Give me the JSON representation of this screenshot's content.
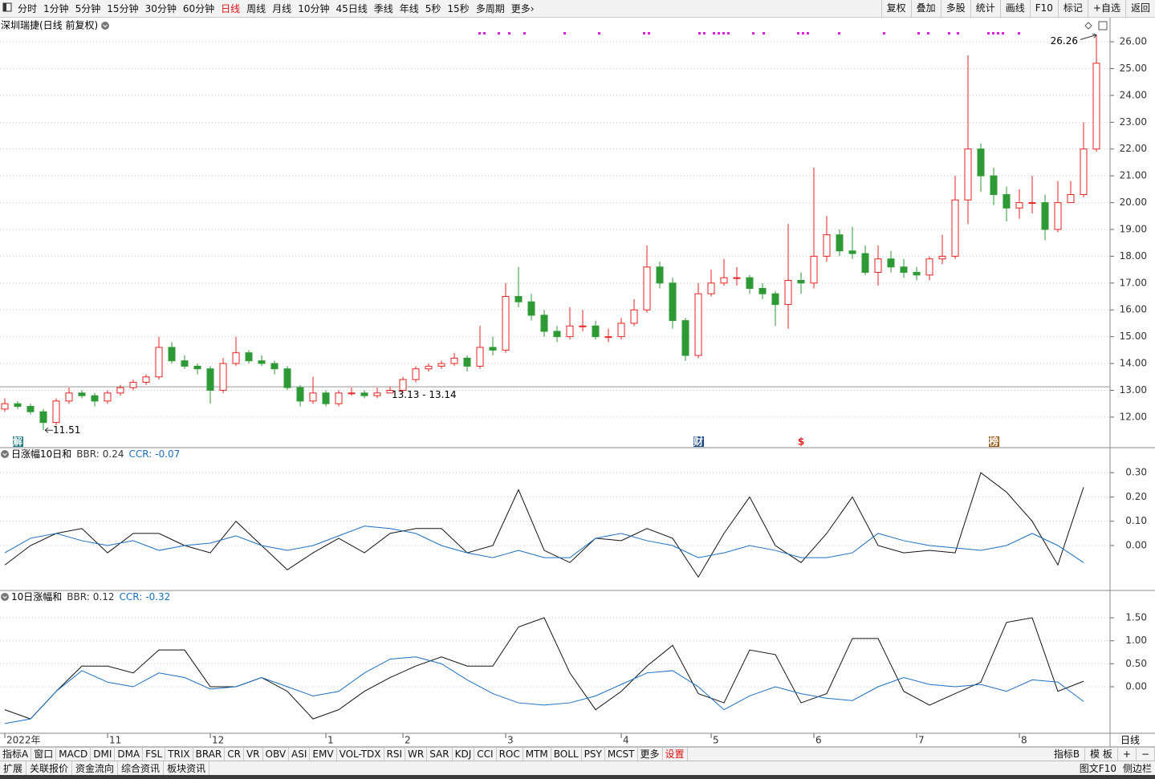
{
  "toolbar": {
    "periods": [
      "分时",
      "1分钟",
      "5分钟",
      "15分钟",
      "30分钟",
      "60分钟",
      "日线",
      "周线",
      "月线",
      "10分钟",
      "45日线",
      "季线",
      "年线",
      "5秒",
      "15秒",
      "多周期",
      "更多"
    ],
    "active": 6,
    "right": [
      "复权",
      "叠加",
      "多股",
      "统计",
      "画线",
      "F10",
      "标记",
      "+自选",
      "返回"
    ]
  },
  "chart_data": [
    {
      "type": "candlestick",
      "title": "深圳瑞捷(日线 前复权)",
      "up_color": "#e8231f",
      "down_color": "#2e9a35",
      "ohlc": [
        [
          12.3,
          12.7,
          12.2,
          12.5
        ],
        [
          12.5,
          12.6,
          12.3,
          12.4
        ],
        [
          12.4,
          12.5,
          12.1,
          12.2
        ],
        [
          12.2,
          12.3,
          11.51,
          11.8
        ],
        [
          11.8,
          12.7,
          11.7,
          12.6
        ],
        [
          12.6,
          13.1,
          12.5,
          12.9
        ],
        [
          12.9,
          13.0,
          12.7,
          12.8
        ],
        [
          12.8,
          12.9,
          12.4,
          12.6
        ],
        [
          12.6,
          13.0,
          12.5,
          12.9
        ],
        [
          12.9,
          13.2,
          12.8,
          13.1
        ],
        [
          13.1,
          13.4,
          13.0,
          13.3
        ],
        [
          13.3,
          13.6,
          13.2,
          13.5
        ],
        [
          13.5,
          15.0,
          13.4,
          14.6
        ],
        [
          14.6,
          14.8,
          14.0,
          14.1
        ],
        [
          14.1,
          14.3,
          13.8,
          13.9
        ],
        [
          13.9,
          14.0,
          13.6,
          13.8
        ],
        [
          13.8,
          13.9,
          12.5,
          13.0
        ],
        [
          13.0,
          14.2,
          12.9,
          14.0
        ],
        [
          14.0,
          15.0,
          13.9,
          14.4
        ],
        [
          14.4,
          14.5,
          14.0,
          14.1
        ],
        [
          14.1,
          14.3,
          13.9,
          14.0
        ],
        [
          14.0,
          14.1,
          13.6,
          13.8
        ],
        [
          13.8,
          13.9,
          13.0,
          13.1
        ],
        [
          13.1,
          13.2,
          12.4,
          12.6
        ],
        [
          12.6,
          13.5,
          12.5,
          12.9
        ],
        [
          12.9,
          13.0,
          12.4,
          12.5
        ],
        [
          12.5,
          13.0,
          12.4,
          12.9
        ],
        [
          12.9,
          13.1,
          12.8,
          12.9
        ],
        [
          12.9,
          13.0,
          12.7,
          12.8
        ],
        [
          12.8,
          13.1,
          12.7,
          12.9
        ],
        [
          12.9,
          13.14,
          12.9,
          13.0
        ],
        [
          13.0,
          13.5,
          12.9,
          13.4
        ],
        [
          13.4,
          13.9,
          13.3,
          13.8
        ],
        [
          13.8,
          14.0,
          13.7,
          13.9
        ],
        [
          13.9,
          14.1,
          13.8,
          14.0
        ],
        [
          14.0,
          14.4,
          13.9,
          14.2
        ],
        [
          14.2,
          14.3,
          13.7,
          13.9
        ],
        [
          13.9,
          15.4,
          13.8,
          14.6
        ],
        [
          14.6,
          15.0,
          14.3,
          14.5
        ],
        [
          14.5,
          17.0,
          14.4,
          16.5
        ],
        [
          16.5,
          17.6,
          16.1,
          16.3
        ],
        [
          16.3,
          16.6,
          15.6,
          15.8
        ],
        [
          15.8,
          16.0,
          15.0,
          15.2
        ],
        [
          15.2,
          15.4,
          14.8,
          15.0
        ],
        [
          15.0,
          16.1,
          14.9,
          15.4
        ],
        [
          15.4,
          16.0,
          15.2,
          15.4
        ],
        [
          15.4,
          15.6,
          14.9,
          15.0
        ],
        [
          15.0,
          15.3,
          14.8,
          15.0
        ],
        [
          15.0,
          15.7,
          14.9,
          15.5
        ],
        [
          15.5,
          16.4,
          15.4,
          16.0
        ],
        [
          16.0,
          18.4,
          15.9,
          17.6
        ],
        [
          17.6,
          17.8,
          16.8,
          17.0
        ],
        [
          17.0,
          17.2,
          15.3,
          15.6
        ],
        [
          15.6,
          15.7,
          14.1,
          14.3
        ],
        [
          14.3,
          17.0,
          14.2,
          16.6
        ],
        [
          16.6,
          17.5,
          16.5,
          17.0
        ],
        [
          17.0,
          17.9,
          16.9,
          17.2
        ],
        [
          17.2,
          17.6,
          16.9,
          17.2
        ],
        [
          17.2,
          17.3,
          16.6,
          16.8
        ],
        [
          16.8,
          17.0,
          16.4,
          16.6
        ],
        [
          16.6,
          16.7,
          15.4,
          16.2
        ],
        [
          16.2,
          19.2,
          15.3,
          17.1
        ],
        [
          17.1,
          17.4,
          16.6,
          17.0
        ],
        [
          17.0,
          21.3,
          16.8,
          18.0
        ],
        [
          18.0,
          19.5,
          17.8,
          18.8
        ],
        [
          18.8,
          19.0,
          18.0,
          18.2
        ],
        [
          18.2,
          19.1,
          17.9,
          18.1
        ],
        [
          18.1,
          18.4,
          17.3,
          17.4
        ],
        [
          17.4,
          18.4,
          16.9,
          17.9
        ],
        [
          17.9,
          18.2,
          17.4,
          17.6
        ],
        [
          17.6,
          17.9,
          17.2,
          17.4
        ],
        [
          17.4,
          17.6,
          17.1,
          17.3
        ],
        [
          17.3,
          18.0,
          17.1,
          17.9
        ],
        [
          17.9,
          18.8,
          17.7,
          18.0
        ],
        [
          18.0,
          21.0,
          17.9,
          20.1
        ],
        [
          20.1,
          25.5,
          19.2,
          22.0
        ],
        [
          22.0,
          22.2,
          20.4,
          21.0
        ],
        [
          21.0,
          21.3,
          19.9,
          20.3
        ],
        [
          20.3,
          20.6,
          19.3,
          19.8
        ],
        [
          19.8,
          20.5,
          19.4,
          20.0
        ],
        [
          20.0,
          21.0,
          19.6,
          20.0
        ],
        [
          20.0,
          20.3,
          18.6,
          19.0
        ],
        [
          19.0,
          20.8,
          18.9,
          20.0
        ],
        [
          20.0,
          20.8,
          20.0,
          20.3
        ],
        [
          20.3,
          23.0,
          20.2,
          22.0
        ],
        [
          22.0,
          26.26,
          21.9,
          25.2
        ]
      ],
      "ylim": [
        10.86,
        26.9
      ],
      "yticks": [
        {
          "value": 26,
          "label": "26.00"
        },
        {
          "value": 25,
          "label": "25.00"
        },
        {
          "value": 24,
          "label": "24.00"
        },
        {
          "value": 23,
          "label": "23.00"
        },
        {
          "value": 22,
          "label": "22.00"
        },
        {
          "value": 21,
          "label": "21.00"
        },
        {
          "value": 20,
          "label": "20.00"
        },
        {
          "value": 19,
          "label": "19.00"
        },
        {
          "value": 18,
          "label": "18.00"
        },
        {
          "value": 17,
          "label": "17.00"
        },
        {
          "value": 16,
          "label": "16.00"
        },
        {
          "value": 15,
          "label": "15.00"
        },
        {
          "value": 14,
          "label": "14.00"
        },
        {
          "value": 13,
          "label": "13.00"
        },
        {
          "value": 12,
          "label": "12.00"
        }
      ],
      "grid": true,
      "marker_line": [
        13.13,
        13.14
      ],
      "events": [
        {
          "at": 1,
          "label": "解",
          "color": "#1f7f86"
        },
        {
          "at": 54,
          "label": "财",
          "color": "#234f86"
        },
        {
          "at": 62,
          "label": "$",
          "color": "#e02020"
        },
        {
          "at": 77,
          "label": "榜",
          "color": "#9a5a12"
        }
      ]
    },
    {
      "type": "line",
      "title": "日涨幅10日和",
      "series": [
        {
          "name": "BBR:",
          "color": "#111111",
          "values": [
            -0.08,
            0,
            0.05,
            0.07,
            -0.03,
            0.05,
            0.05,
            0,
            -0.03,
            0.1,
            0,
            -0.1,
            -0.03,
            0.03,
            -0.03,
            0.05,
            0.07,
            0.07,
            -0.03,
            0,
            0.23,
            -0.02,
            -0.07,
            0.03,
            0.02,
            0.07,
            0.03,
            -0.13,
            0.05,
            0.2,
            0,
            -0.07,
            0.05,
            0.2,
            0,
            -0.03,
            -0.02,
            -0.03,
            0.3,
            0.22,
            0.1,
            -0.08,
            0.24
          ]
        },
        {
          "name": "CCR:",
          "color": "#1a6fc4",
          "values": [
            -0.03,
            0.03,
            0.05,
            0.02,
            0,
            0.02,
            -0.02,
            0,
            0.01,
            0.04,
            0,
            -0.02,
            0,
            0.04,
            0.08,
            0.07,
            0.05,
            0,
            -0.03,
            -0.05,
            -0.02,
            -0.05,
            -0.05,
            0.03,
            0.05,
            0.02,
            0,
            -0.05,
            -0.03,
            0,
            -0.02,
            -0.05,
            -0.05,
            -0.03,
            0.05,
            0.02,
            0,
            -0.01,
            -0.02,
            0,
            0.05,
            0,
            -0.07
          ]
        }
      ],
      "ylim": [
        -0.185,
        0.403
      ],
      "yticks": [
        {
          "value": 0.3,
          "label": "0.30"
        },
        {
          "value": 0.2,
          "label": "0.20"
        },
        {
          "value": 0.1,
          "label": "0.10"
        },
        {
          "value": 0,
          "label": "0.00"
        }
      ],
      "grid": true
    },
    {
      "type": "line",
      "title": "10日涨幅和",
      "series": [
        {
          "name": "BBR:",
          "color": "#111111",
          "values": [
            -0.5,
            -0.7,
            -0.1,
            0.45,
            0.45,
            0.3,
            0.8,
            0.8,
            0,
            0,
            0.2,
            -0.1,
            -0.7,
            -0.5,
            -0.1,
            0.2,
            0.45,
            0.65,
            0.45,
            0.45,
            1.3,
            1.5,
            0.3,
            -0.5,
            -0.1,
            0.45,
            0.9,
            -0.15,
            -0.35,
            0.8,
            0.7,
            -0.35,
            -0.15,
            1.05,
            1.05,
            -0.1,
            -0.4,
            -0.15,
            0.1,
            1.4,
            1.5,
            -0.1,
            0.12
          ]
        },
        {
          "name": "CCR:",
          "color": "#1a6fc4",
          "values": [
            -0.8,
            -0.7,
            -0.1,
            0.35,
            0.1,
            0,
            0.3,
            0.2,
            -0.05,
            0,
            0.2,
            0,
            -0.2,
            -0.1,
            0.3,
            0.6,
            0.65,
            0.5,
            0.15,
            -0.15,
            -0.35,
            -0.4,
            -0.35,
            -0.2,
            0.05,
            0.3,
            0.35,
            0,
            -0.5,
            -0.2,
            0,
            -0.15,
            -0.25,
            -0.3,
            0,
            0.2,
            0.05,
            0,
            0.05,
            -0.1,
            0.15,
            0.1,
            -0.32
          ]
        }
      ],
      "ylim": [
        -1.012,
        2.094
      ],
      "yticks": [
        {
          "value": 1.5,
          "label": "1.50"
        },
        {
          "value": 1,
          "label": "1.00"
        },
        {
          "value": 0.5,
          "label": "0.50"
        },
        {
          "value": 0,
          "label": "0.00"
        }
      ],
      "grid": true,
      "xticks": [
        {
          "value": 0,
          "label": "2022年"
        },
        {
          "value": 8,
          "label": "11"
        },
        {
          "value": 16,
          "label": "12"
        },
        {
          "value": 25,
          "label": "1"
        },
        {
          "value": 31,
          "label": "2"
        },
        {
          "value": 39,
          "label": "3"
        },
        {
          "value": 48,
          "label": "4"
        },
        {
          "value": 55,
          "label": "5"
        },
        {
          "value": 63,
          "label": "6"
        },
        {
          "value": 71,
          "label": "7"
        },
        {
          "value": 79,
          "label": "8"
        }
      ]
    }
  ],
  "axis_corner": "日线",
  "indicator_bar": {
    "tabs": [
      "指标A",
      "窗口",
      "MACD",
      "DMI",
      "DMA",
      "FSL",
      "TRIX",
      "BRAR",
      "CR",
      "VR",
      "OBV",
      "ASI",
      "EMV",
      "VOL-TDX",
      "RSI",
      "WR",
      "SAR",
      "KDJ",
      "CCI",
      "ROC",
      "MTM",
      "BOLL",
      "PSY",
      "MCST",
      "更多",
      "设置"
    ],
    "right": [
      "指标B",
      "模 板",
      "+",
      "−"
    ]
  },
  "status_bar": {
    "tabs": [
      "扩展",
      "关联报价",
      "资金流向",
      "综合资讯",
      "板块资讯"
    ],
    "right": [
      "图文F10",
      "侧边栏"
    ]
  }
}
